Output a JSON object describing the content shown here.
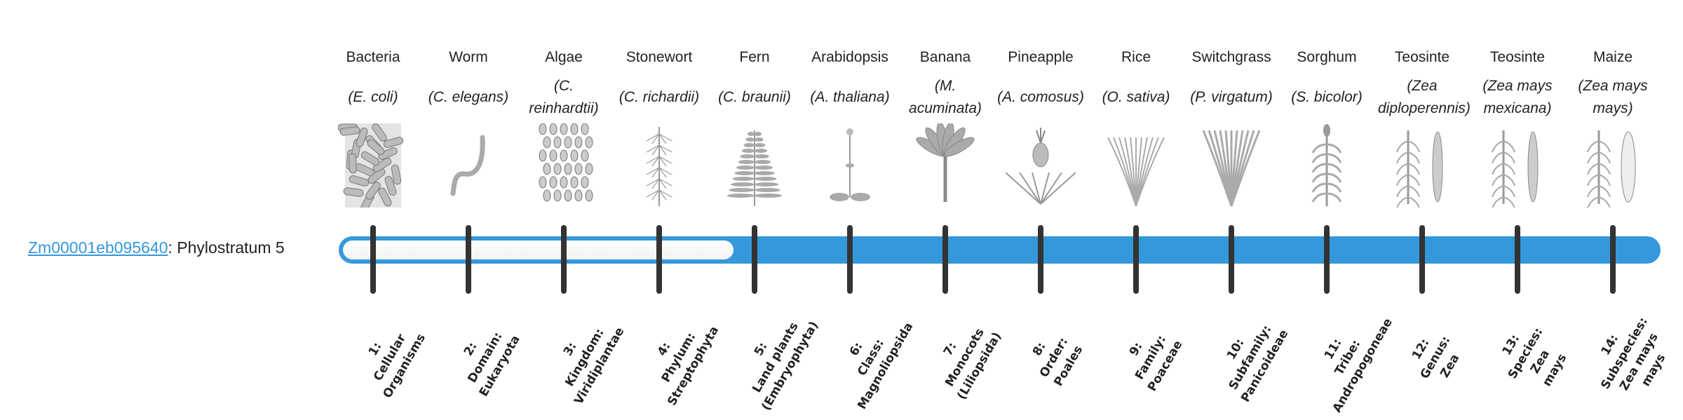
{
  "gene": {
    "id": "Zm00001eb095640",
    "separator": ": ",
    "phylostratum": "Phylostratum 5",
    "value": 5
  },
  "colors": {
    "bar": "#3498db",
    "tick": "#333333",
    "link": "#3498db"
  },
  "organisms": [
    {
      "common": "Bacteria",
      "species": "(E. coli)",
      "icon": "bacteria-icon"
    },
    {
      "common": "Worm",
      "species": "(C. elegans)",
      "icon": "worm-icon"
    },
    {
      "common": "Algae",
      "species": "(C. reinhardtii)",
      "icon": "algae-icon"
    },
    {
      "common": "Stonewort",
      "species": "(C. richardii)",
      "icon": "stonewort-icon"
    },
    {
      "common": "Fern",
      "species": "(C. braunii)",
      "icon": "fern-icon"
    },
    {
      "common": "Arabidopsis",
      "species": "(A. thaliana)",
      "icon": "arabidopsis-icon"
    },
    {
      "common": "Banana",
      "species": "(M. acuminata)",
      "icon": "banana-icon"
    },
    {
      "common": "Pineapple",
      "species": "(A. comosus)",
      "icon": "pineapple-icon"
    },
    {
      "common": "Rice",
      "species": "(O. sativa)",
      "icon": "rice-icon"
    },
    {
      "common": "Switchgrass",
      "species": "(P. virgatum)",
      "icon": "switchgrass-icon"
    },
    {
      "common": "Sorghum",
      "species": "(S. bicolor)",
      "icon": "sorghum-icon"
    },
    {
      "common": "Teosinte",
      "species": "(Zea diploperennis)",
      "icon": "teosinte-icon"
    },
    {
      "common": "Teosinte",
      "species": "(Zea mays mexicana)",
      "icon": "teosinte-icon"
    },
    {
      "common": "Maize",
      "species": "(Zea mays mays)",
      "icon": "maize-icon"
    }
  ],
  "strata": [
    {
      "lines": [
        "1:",
        "Cellular",
        "Organisms"
      ]
    },
    {
      "lines": [
        "2:",
        "Domain:",
        "Eukaryota"
      ]
    },
    {
      "lines": [
        "3:",
        "Kingdom:",
        "Viridiplantae"
      ]
    },
    {
      "lines": [
        "4:",
        "Phylum:",
        "Streptophyta"
      ]
    },
    {
      "lines": [
        "5:",
        "Land plants",
        "(Embryophyta)"
      ]
    },
    {
      "lines": [
        "6:",
        "Class:",
        "Magnoliopsida"
      ]
    },
    {
      "lines": [
        "7:",
        "Monocots",
        "(Liliopsida)"
      ]
    },
    {
      "lines": [
        "8:",
        "Order:",
        "Poales"
      ]
    },
    {
      "lines": [
        "9:",
        "Family:",
        "Poaceae"
      ]
    },
    {
      "lines": [
        "10:",
        "Subfamily:",
        "Panicoideae"
      ]
    },
    {
      "lines": [
        "11:",
        "Tribe:",
        "Andropogoneae"
      ]
    },
    {
      "lines": [
        "12:",
        "Genus:",
        "Zea"
      ]
    },
    {
      "lines": [
        "13:",
        "Species:",
        "Zea",
        "mays"
      ]
    },
    {
      "lines": [
        "14:",
        "Subspecies:",
        "Zea mays",
        "mays"
      ]
    }
  ]
}
